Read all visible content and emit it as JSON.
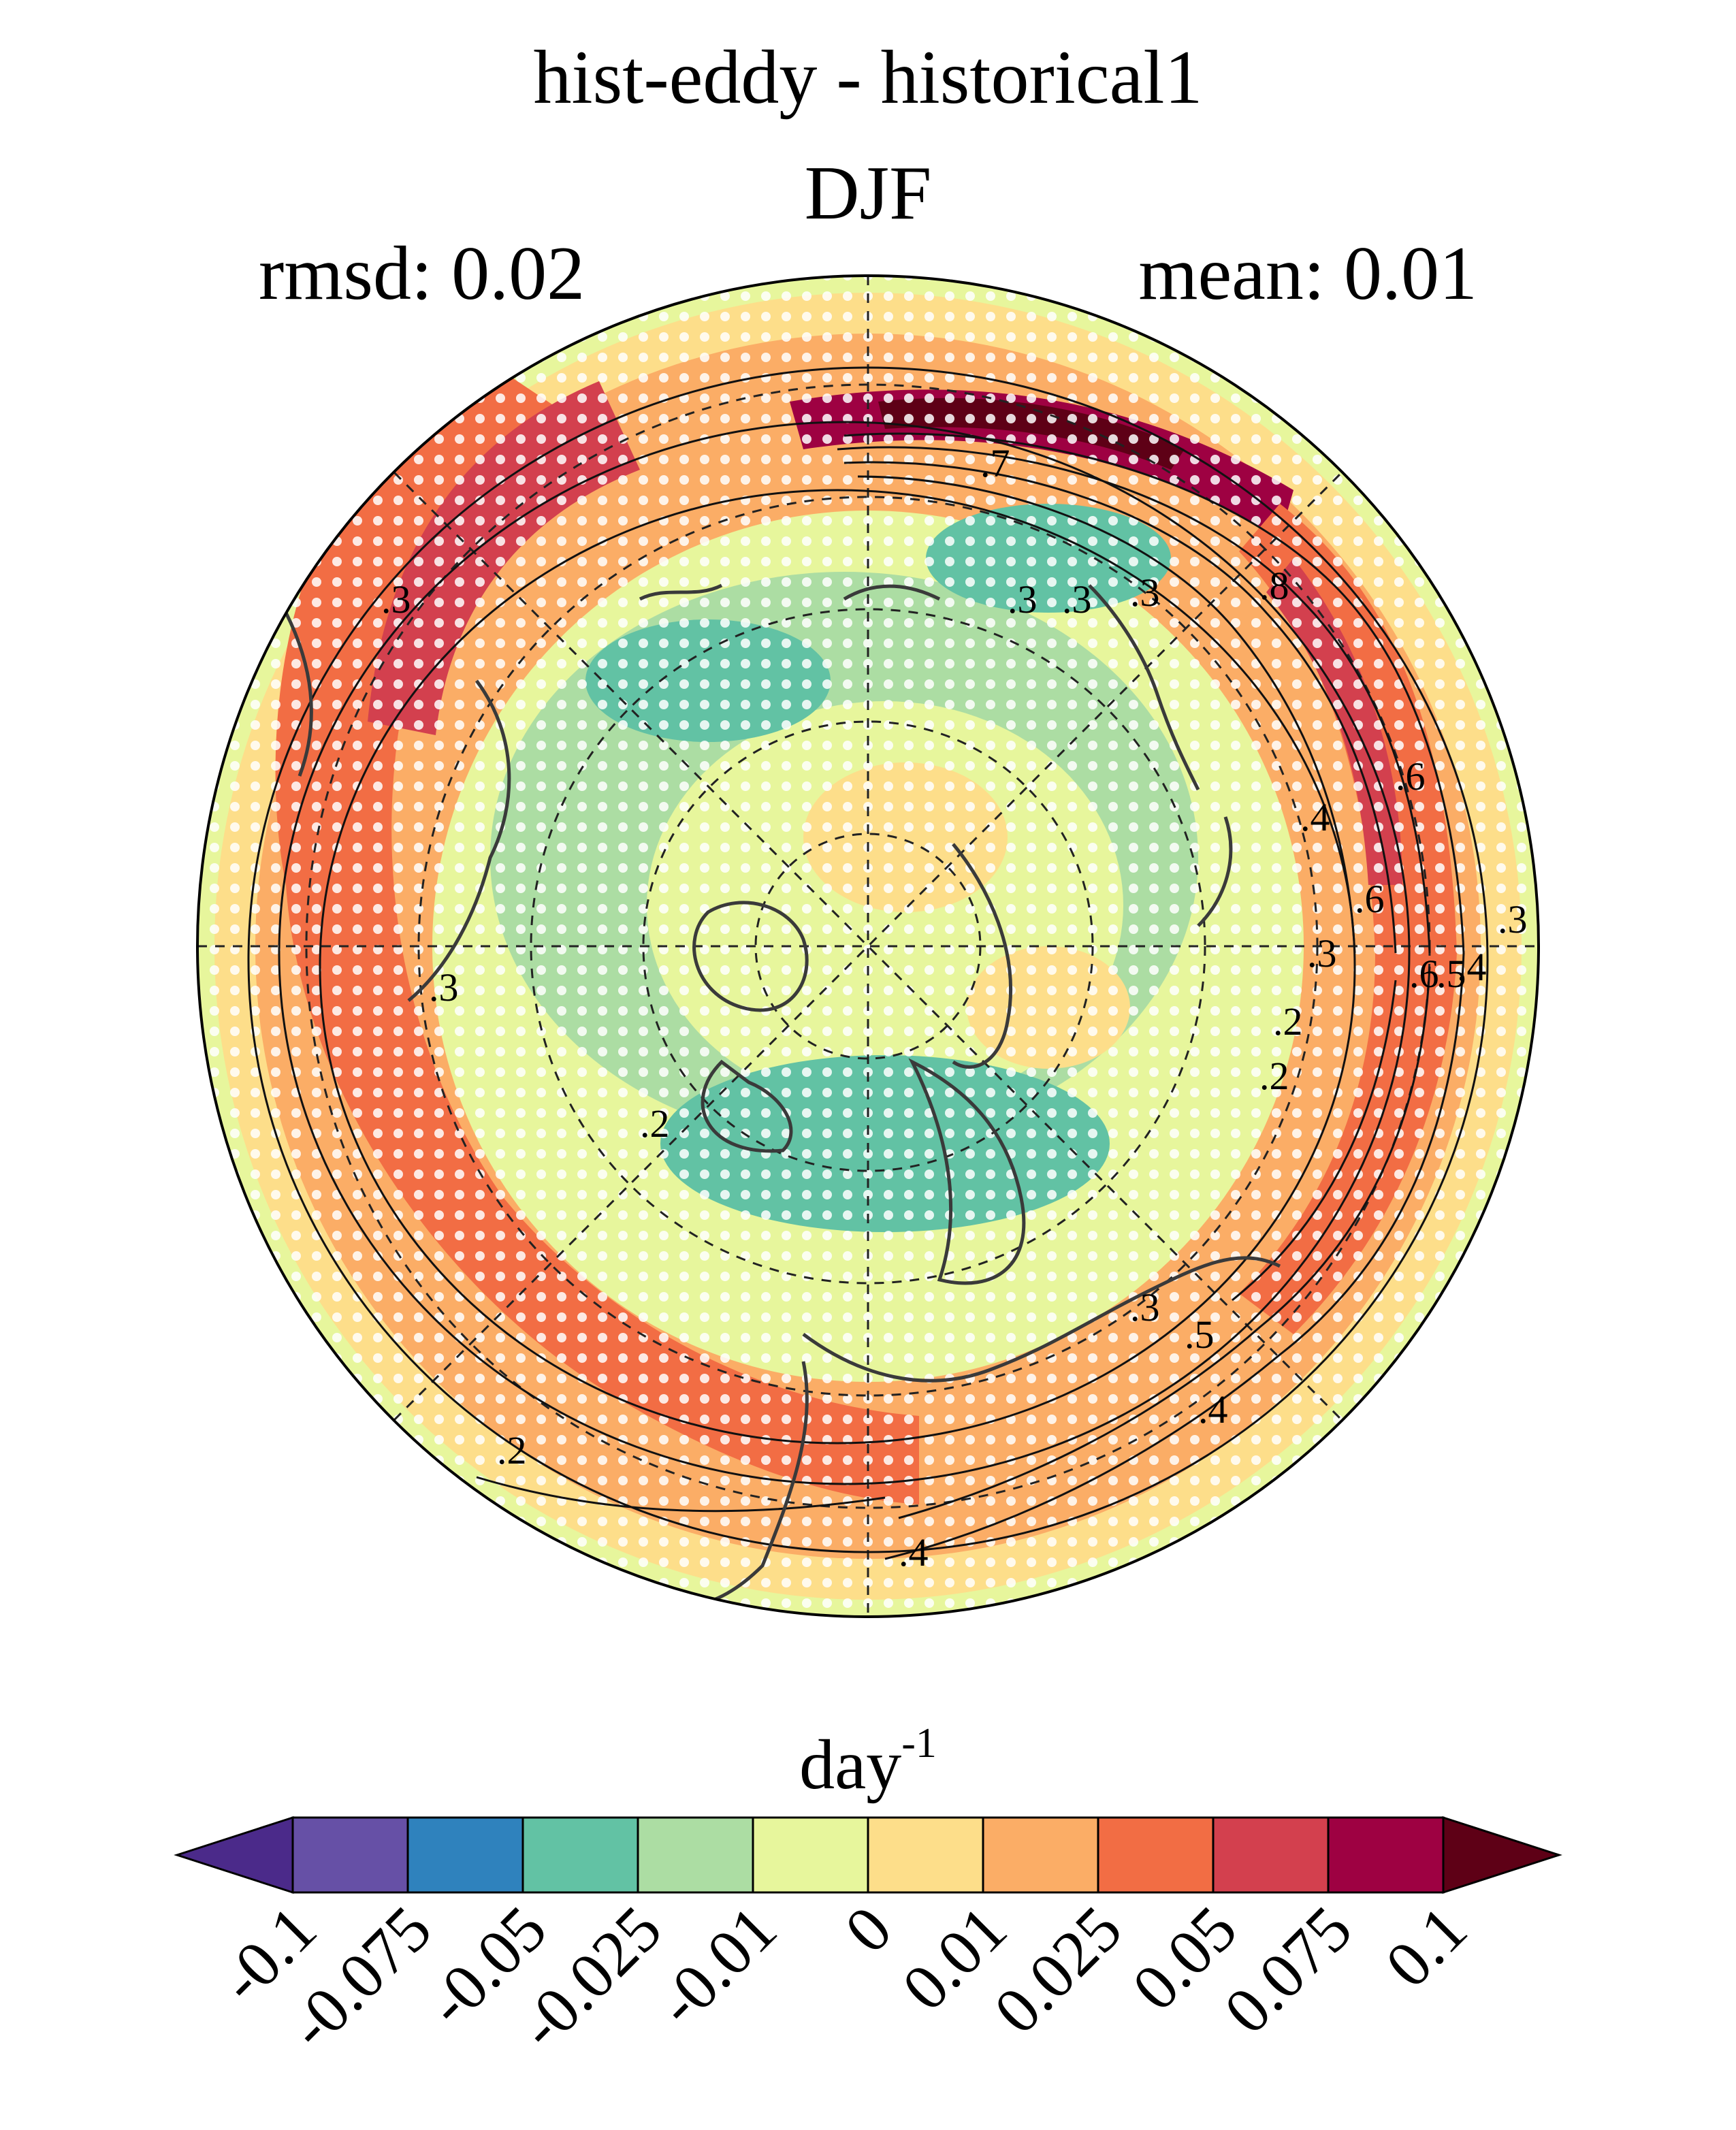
{
  "title": "hist-eddy - historical1",
  "season": "DJF",
  "stats": {
    "rmsd_label": "rmsd: 0.02",
    "mean_label": "mean: 0.01"
  },
  "map": {
    "projection": "north-polar-stereographic",
    "contour_labels": [
      ".7",
      ".3",
      ".3",
      ".8",
      ".6",
      ".4",
      ".6",
      ".3",
      ".4",
      ".5",
      ".6",
      ".3",
      ".3",
      ".2",
      ".2",
      ".3",
      ".5",
      ".4",
      ".2",
      ".2",
      ".4",
      ".3",
      ".3"
    ],
    "stippling": "white dots"
  },
  "colorbar": {
    "unit_base": "day",
    "unit_exp": "-1",
    "ticks": [
      "-0.1",
      "-0.075",
      "-0.05",
      "-0.025",
      "-0.01",
      "0",
      "0.01",
      "0.025",
      "0.05",
      "0.075",
      "0.1"
    ],
    "colors": [
      "#4b2a8a",
      "#6650a6",
      "#2f82bd",
      "#62c2a4",
      "#acdda3",
      "#e7f69c",
      "#fdde8a",
      "#fbad66",
      "#f26d44",
      "#d3404e",
      "#9e0142",
      "#5e0016"
    ]
  }
}
